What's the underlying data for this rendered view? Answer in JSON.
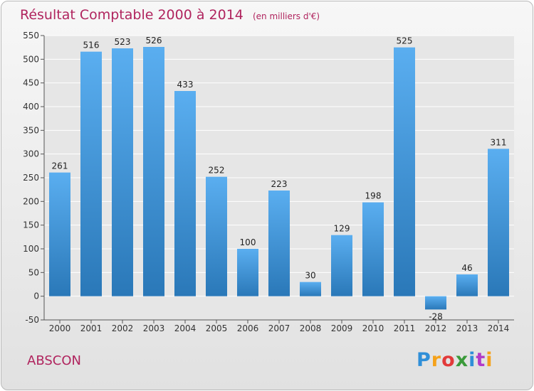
{
  "header": {
    "title": "Résultat Comptable 2000 à 2014",
    "subtitle": "(en milliers d'€)"
  },
  "footer": {
    "city": "ABSCON",
    "logo_letters": [
      "P",
      "r",
      "o",
      "x",
      "i",
      "t",
      "i"
    ],
    "logo_colors": [
      "#2f8fd8",
      "#f5a21a",
      "#e23a3a",
      "#3a9a3a",
      "#2f8fd8",
      "#b23ac8",
      "#f5a21a"
    ]
  },
  "colors": {
    "title": "#b0245e",
    "bar_top": "#5aaef0",
    "bar_bottom": "#2a78b8",
    "grid": "#ffffff",
    "axis_text": "#333333"
  },
  "chart_data": {
    "type": "bar",
    "title": "Résultat Comptable 2000 à 2014",
    "subtitle": "(en milliers d'€)",
    "categories": [
      "2000",
      "2001",
      "2002",
      "2003",
      "2004",
      "2005",
      "2006",
      "2007",
      "2008",
      "2009",
      "2010",
      "2011",
      "2012",
      "2013",
      "2014"
    ],
    "values": [
      261,
      516,
      523,
      526,
      433,
      252,
      100,
      223,
      30,
      129,
      198,
      525,
      -28,
      46,
      311
    ],
    "data_labels": [
      "261",
      "516",
      "523",
      "526",
      "433",
      "252",
      "100",
      "223",
      "30",
      "129",
      "198",
      "525",
      "-28",
      "46",
      "311"
    ],
    "ylim": [
      -50,
      550
    ],
    "yticks": [
      -50,
      0,
      50,
      100,
      150,
      200,
      250,
      300,
      350,
      400,
      450,
      500,
      550
    ],
    "xlabel": "",
    "ylabel": "",
    "grid": true,
    "legend": "none"
  }
}
